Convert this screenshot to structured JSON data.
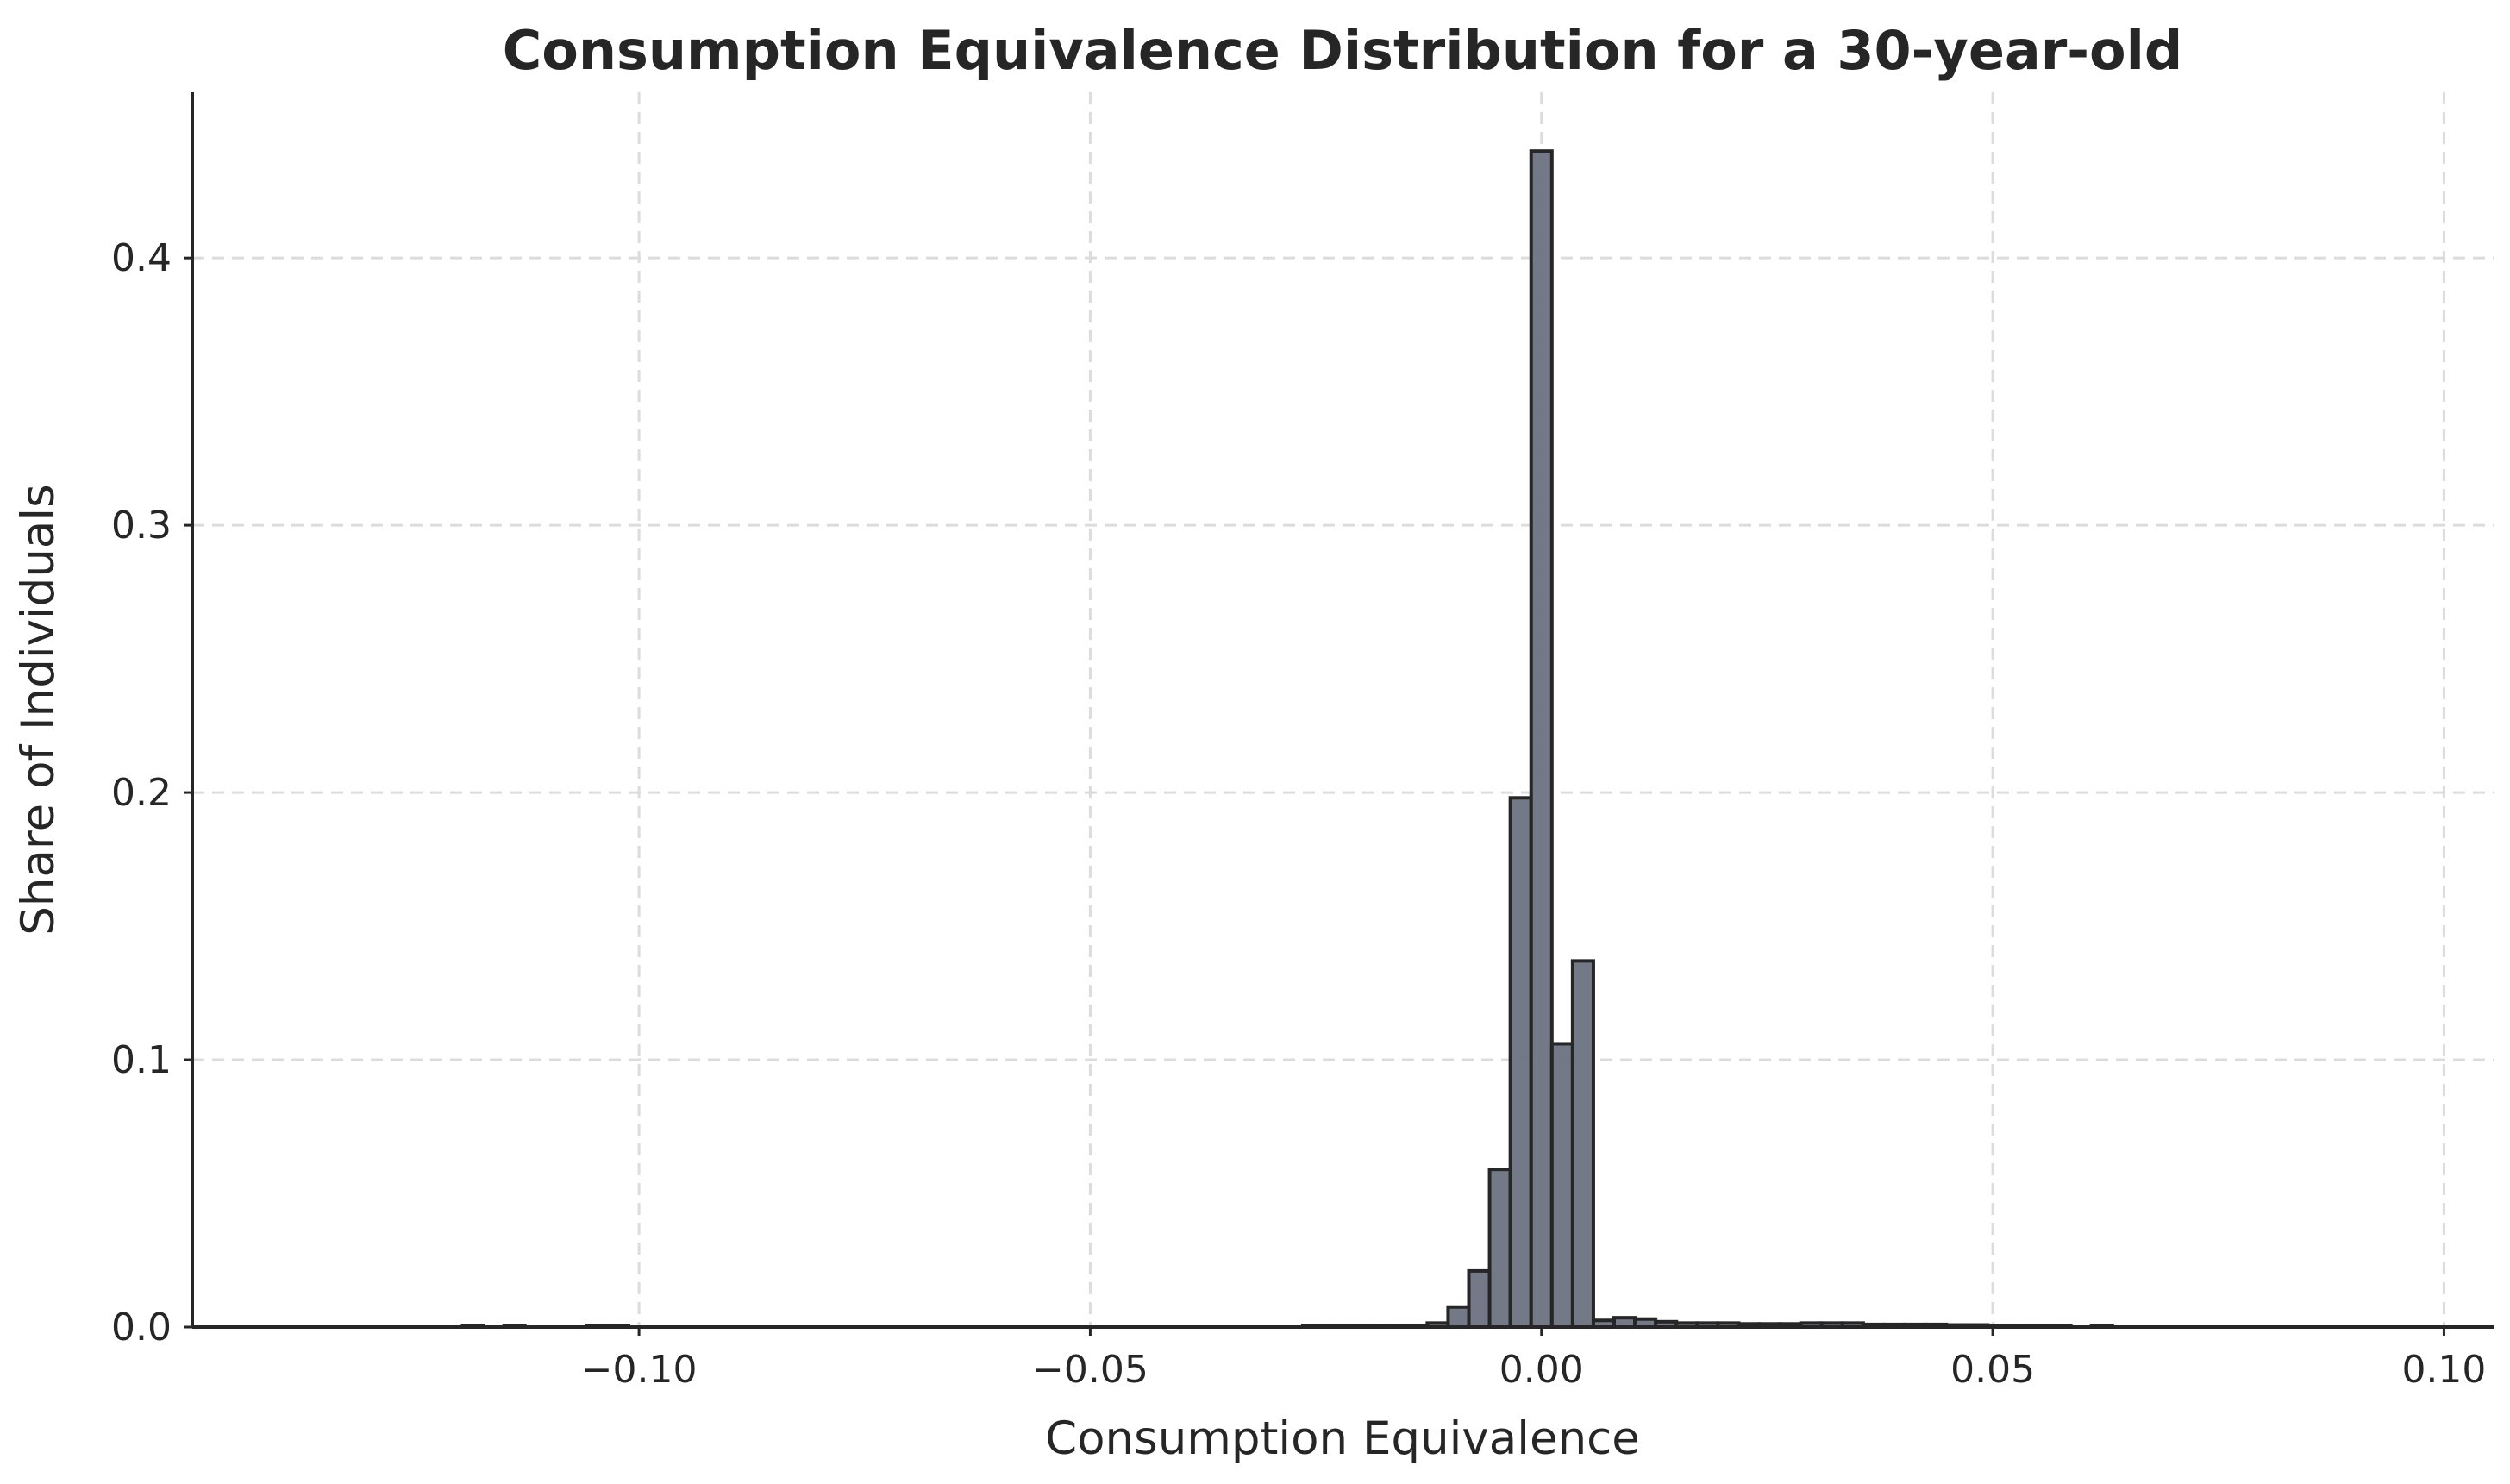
{
  "chart_data": {
    "type": "bar",
    "title": "Consumption Equivalence Distribution for a 30-year-old",
    "xlabel": "Consumption Equivalence",
    "ylabel": "Share of Individuals",
    "xlim": [
      -0.1495,
      0.1055
    ],
    "ylim": [
      0,
      0.462
    ],
    "xticks": [
      -0.1,
      -0.05,
      0.0,
      0.05,
      0.1
    ],
    "xtick_labels": [
      "−0.10",
      "−0.05",
      "0.00",
      "0.05",
      "0.10"
    ],
    "yticks": [
      0.0,
      0.1,
      0.2,
      0.3,
      0.4
    ],
    "ytick_labels": [
      "0.0",
      "0.1",
      "0.2",
      "0.3",
      "0.4"
    ],
    "grid": true,
    "bar_color": "#6b7280",
    "edge_color": "#262626",
    "bin_width": 0.0023,
    "bins": [
      {
        "x": -0.1184,
        "y": 0.0006
      },
      {
        "x": -0.1138,
        "y": 0.0006
      },
      {
        "x": -0.1046,
        "y": 0.0006
      },
      {
        "x": -0.1023,
        "y": 0.0006
      },
      {
        "x": -0.0253,
        "y": 0.0006
      },
      {
        "x": -0.023,
        "y": 0.0006
      },
      {
        "x": -0.0207,
        "y": 0.0006
      },
      {
        "x": -0.0184,
        "y": 0.0006
      },
      {
        "x": -0.0161,
        "y": 0.0006
      },
      {
        "x": -0.0138,
        "y": 0.0006
      },
      {
        "x": -0.0115,
        "y": 0.0015
      },
      {
        "x": -0.0092,
        "y": 0.0075
      },
      {
        "x": -0.0069,
        "y": 0.021
      },
      {
        "x": -0.0046,
        "y": 0.059
      },
      {
        "x": -0.0023,
        "y": 0.198
      },
      {
        "x": 0.0,
        "y": 0.44
      },
      {
        "x": 0.0023,
        "y": 0.106
      },
      {
        "x": 0.0046,
        "y": 0.137
      },
      {
        "x": 0.0069,
        "y": 0.0025
      },
      {
        "x": 0.0092,
        "y": 0.0035
      },
      {
        "x": 0.0115,
        "y": 0.003
      },
      {
        "x": 0.0138,
        "y": 0.002
      },
      {
        "x": 0.0161,
        "y": 0.0015
      },
      {
        "x": 0.0184,
        "y": 0.0015
      },
      {
        "x": 0.0207,
        "y": 0.0015
      },
      {
        "x": 0.023,
        "y": 0.0012
      },
      {
        "x": 0.0253,
        "y": 0.0012
      },
      {
        "x": 0.0276,
        "y": 0.0012
      },
      {
        "x": 0.0299,
        "y": 0.0015
      },
      {
        "x": 0.0322,
        "y": 0.0015
      },
      {
        "x": 0.0345,
        "y": 0.0015
      },
      {
        "x": 0.0368,
        "y": 0.001
      },
      {
        "x": 0.0391,
        "y": 0.001
      },
      {
        "x": 0.0414,
        "y": 0.001
      },
      {
        "x": 0.0437,
        "y": 0.001
      },
      {
        "x": 0.046,
        "y": 0.0008
      },
      {
        "x": 0.0483,
        "y": 0.0008
      },
      {
        "x": 0.0506,
        "y": 0.0006
      },
      {
        "x": 0.0529,
        "y": 0.0006
      },
      {
        "x": 0.0552,
        "y": 0.0006
      },
      {
        "x": 0.0575,
        "y": 0.0006
      },
      {
        "x": 0.0621,
        "y": 0.0005
      }
    ]
  }
}
